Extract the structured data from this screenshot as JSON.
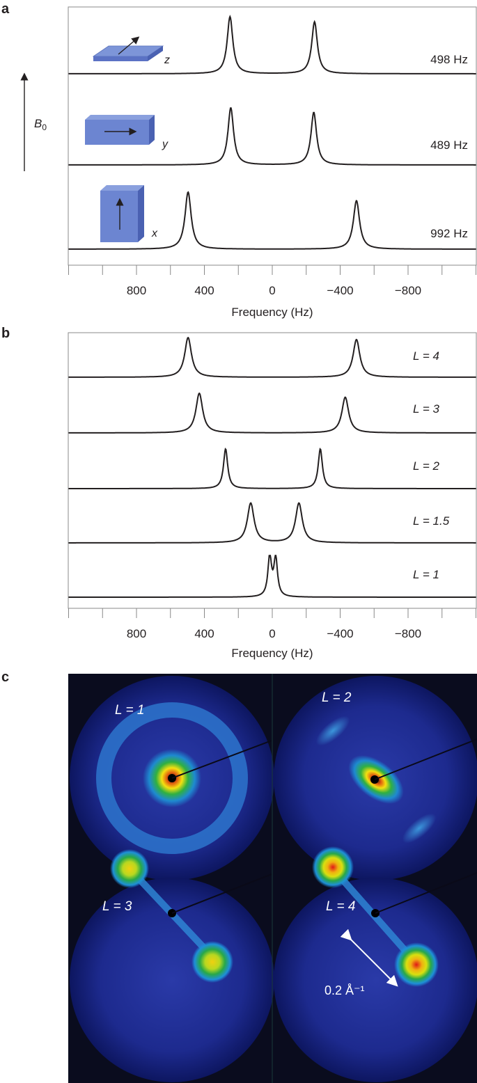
{
  "panels": {
    "a": "a",
    "b": "b",
    "c": "c"
  },
  "field_label": {
    "symbol": "B",
    "subscript": "0"
  },
  "chart_data": [
    {
      "panel": "a",
      "type": "line",
      "xlabel": "Frequency (Hz)",
      "xlim": [
        1200,
        -1200
      ],
      "xticks": [
        {
          "value": 800,
          "label": "800"
        },
        {
          "value": 400,
          "label": "400"
        },
        {
          "value": 0,
          "label": "0"
        },
        {
          "value": -400,
          "label": "−400"
        },
        {
          "value": -800,
          "label": "−800"
        }
      ],
      "series": [
        {
          "name": "z",
          "splitting_label": "498 Hz",
          "peaks": [
            249,
            -249
          ],
          "width": 20,
          "heights": [
            1.0,
            0.91
          ]
        },
        {
          "name": "y",
          "splitting_label": "489 Hz",
          "peaks": [
            244.5,
            -244.5
          ],
          "width": 20,
          "heights": [
            1.0,
            0.92
          ]
        },
        {
          "name": "x",
          "splitting_label": "992 Hz",
          "peaks": [
            496,
            -496
          ],
          "width": 22,
          "heights": [
            1.0,
            0.85
          ]
        }
      ]
    },
    {
      "panel": "b",
      "type": "line",
      "xlabel": "Frequency (Hz)",
      "xlim": [
        1200,
        -1200
      ],
      "xticks": [
        {
          "value": 800,
          "label": "800"
        },
        {
          "value": 400,
          "label": "400"
        },
        {
          "value": 0,
          "label": "0"
        },
        {
          "value": -400,
          "label": "−400"
        },
        {
          "value": -800,
          "label": "−800"
        }
      ],
      "series": [
        {
          "name": "L = 4",
          "peaks": [
            496,
            -496
          ],
          "width": 24,
          "heights": [
            1.0,
            0.95
          ]
        },
        {
          "name": "L = 3",
          "peaks": [
            430,
            -430
          ],
          "width": 24,
          "heights": [
            1.0,
            0.9
          ]
        },
        {
          "name": "L = 2",
          "peaks": [
            275,
            -283
          ],
          "width": 15,
          "heights": [
            1.0,
            1.0
          ]
        },
        {
          "name": "L = 1.5",
          "peaks": [
            127,
            -157
          ],
          "width": 24,
          "heights": [
            1.0,
            1.0
          ]
        },
        {
          "name": "L = 1",
          "peaks": [
            15,
            -20
          ],
          "width": 13,
          "heights": [
            1.0,
            0.95
          ]
        }
      ]
    },
    {
      "panel": "c",
      "type": "heatmap",
      "images": [
        {
          "name": "L = 1",
          "pattern": "isotropic ring"
        },
        {
          "name": "L = 2",
          "pattern": "weak diagonal lobes"
        },
        {
          "name": "L = 3",
          "pattern": "strong diagonal lobes"
        },
        {
          "name": "L = 4",
          "pattern": "strongest diagonal lobes"
        }
      ],
      "scale_bar": "0.2 Å⁻¹"
    }
  ]
}
